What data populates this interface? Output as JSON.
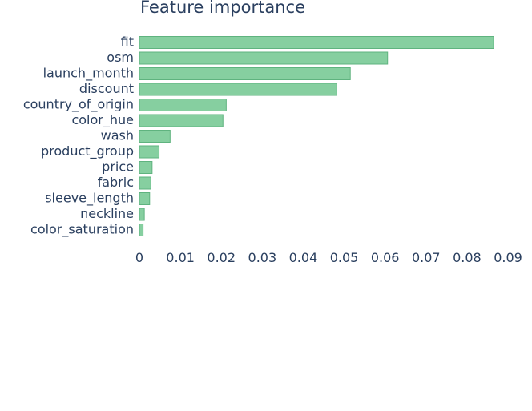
{
  "chart_data": {
    "type": "bar",
    "orientation": "horizontal",
    "title": "Feature importance",
    "xlabel": "",
    "ylabel": "",
    "categories": [
      "fit",
      "osm",
      "launch_month",
      "discount",
      "country_of_origin",
      "color_hue",
      "wash",
      "product_group",
      "price",
      "fabric",
      "sleeve_length",
      "neckline",
      "color_saturation"
    ],
    "values": [
      0.0865,
      0.0606,
      0.0515,
      0.0482,
      0.0212,
      0.0204,
      0.0075,
      0.0048,
      0.0031,
      0.0028,
      0.0025,
      0.0012,
      0.0009
    ],
    "xlim": [
      0,
      0.09
    ],
    "xticks": [
      0,
      0.01,
      0.02,
      0.03,
      0.04,
      0.05,
      0.06,
      0.07,
      0.08,
      0.09
    ],
    "xtick_labels": [
      "0",
      "0.01",
      "0.02",
      "0.03",
      "0.04",
      "0.05",
      "0.06",
      "0.07",
      "0.08",
      "0.09"
    ],
    "grid": false,
    "legend": "none",
    "colors": {
      "bar_fill": "#86cfa0",
      "bar_stroke": "#5fb37f",
      "text": "#2a3f5f"
    }
  }
}
